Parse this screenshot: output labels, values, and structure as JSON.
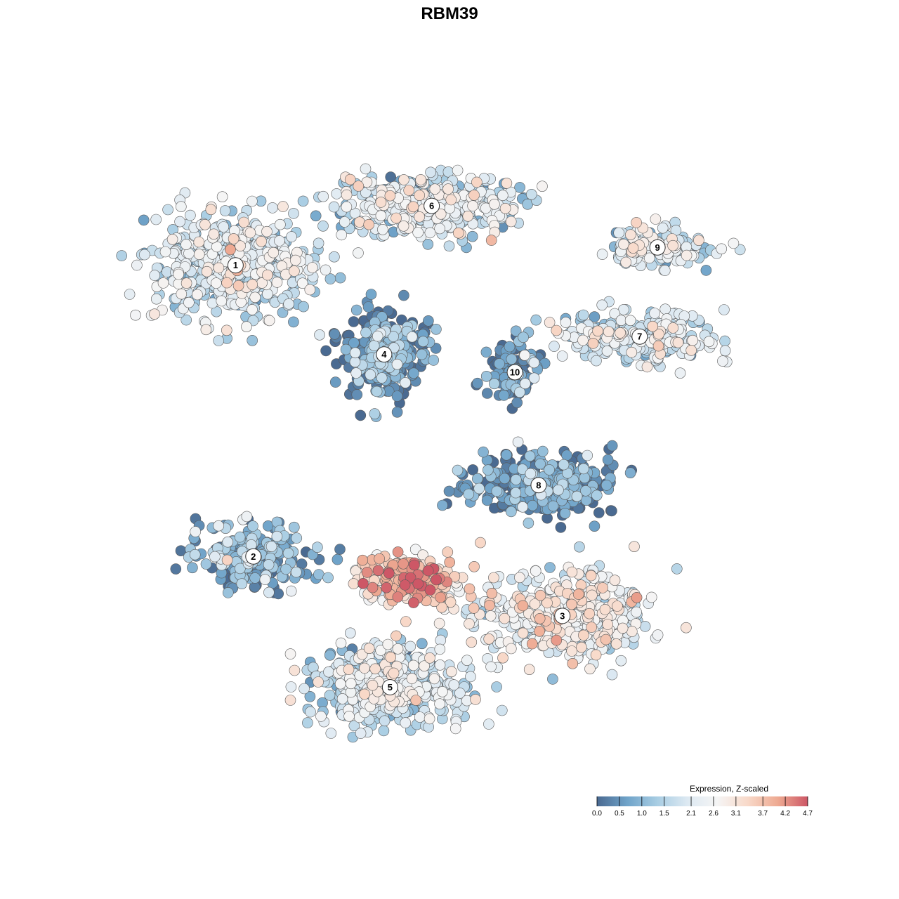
{
  "chart_data": {
    "type": "scatter",
    "title": "RBM39",
    "xlabel": "",
    "ylabel": "",
    "grid": false,
    "legend_placement": "bottom-right",
    "color_scale": {
      "title": "Expression, Z-scaled",
      "min": 0.0,
      "max": 4.7,
      "stops": [
        "#4a6a91",
        "#6fa3c9",
        "#a8cde3",
        "#dde9f2",
        "#f5f5f5",
        "#f8d9c9",
        "#eeaa92",
        "#cd5766"
      ],
      "ticks": [
        "0.0",
        "0.5",
        "1.0",
        "1.5",
        "2.1",
        "2.6",
        "3.1",
        "3.7",
        "4.2",
        "4.7"
      ]
    },
    "clusters": [
      {
        "label": "1",
        "x": -3.6,
        "y": 3.1,
        "spread_x": 1.3,
        "spread_y": 0.85,
        "mean_expr": 1.9,
        "n": 520
      },
      {
        "label": "2",
        "x": -3.3,
        "y": -1.8,
        "spread_x": 0.9,
        "spread_y": 0.5,
        "mean_expr": 0.8,
        "n": 230
      },
      {
        "label": "3",
        "x": 1.9,
        "y": -2.8,
        "spread_x": 1.2,
        "spread_y": 0.65,
        "mean_expr": 2.3,
        "n": 520
      },
      {
        "label": "4",
        "x": -1.1,
        "y": 1.6,
        "spread_x": 0.6,
        "spread_y": 0.6,
        "mean_expr": 0.5,
        "n": 330
      },
      {
        "label": "5",
        "x": -1.0,
        "y": -4.0,
        "spread_x": 1.1,
        "spread_y": 0.6,
        "mean_expr": 1.8,
        "n": 520
      },
      {
        "label": "6",
        "x": -0.3,
        "y": 4.1,
        "spread_x": 1.4,
        "spread_y": 0.45,
        "mean_expr": 1.9,
        "n": 430
      },
      {
        "label": "7",
        "x": 3.2,
        "y": 1.9,
        "spread_x": 1.1,
        "spread_y": 0.4,
        "mean_expr": 1.9,
        "n": 260
      },
      {
        "label": "8",
        "x": 1.5,
        "y": -0.6,
        "spread_x": 1.2,
        "spread_y": 0.45,
        "mean_expr": 0.4,
        "n": 330
      },
      {
        "label": "9",
        "x": 3.5,
        "y": 3.4,
        "spread_x": 0.75,
        "spread_y": 0.3,
        "mean_expr": 2.0,
        "n": 150
      },
      {
        "label": "10",
        "x": 1.1,
        "y": 1.3,
        "spread_x": 0.4,
        "spread_y": 0.45,
        "mean_expr": 0.4,
        "n": 110
      },
      {
        "label": "",
        "x": -0.7,
        "y": -2.2,
        "spread_x": 0.7,
        "spread_y": 0.4,
        "mean_expr": 3.4,
        "n": 250
      }
    ],
    "xlim": [
      -6.5,
      6.5
    ],
    "ylim": [
      -6.5,
      6.5
    ]
  }
}
